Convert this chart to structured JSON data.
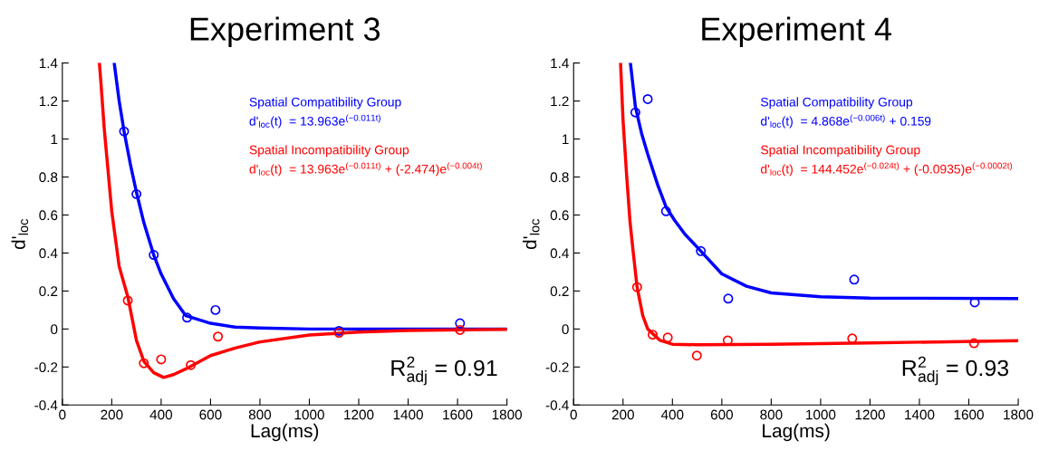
{
  "chart_data": [
    {
      "type": "scatter",
      "title": "Experiment 3",
      "xlabel": "Lag(ms)",
      "ylabel": "d'$_{loc}$",
      "xlim": [
        0,
        1800
      ],
      "ylim": [
        -0.4,
        1.4
      ],
      "xticks": [
        0,
        200,
        400,
        600,
        800,
        1000,
        1200,
        1400,
        1600,
        1800
      ],
      "yticks": [
        -0.4,
        -0.2,
        0,
        0.2,
        0.4,
        0.6,
        0.8,
        1,
        1.2,
        1.4
      ],
      "grid": false,
      "legend": "top right",
      "marker": "circle",
      "series": [
        {
          "color": "#0000ff",
          "x": [
            250,
            300,
            370,
            505,
            620,
            1120,
            1610
          ],
          "values": [
            1.04,
            0.71,
            0.39,
            0.06,
            0.1,
            -0.01,
            0.03
          ]
        },
        {
          "color": "#ff0000",
          "x": [
            265,
            330,
            400,
            520,
            630,
            1120,
            1610
          ],
          "values": [
            0.15,
            -0.18,
            -0.16,
            -0.19,
            -0.04,
            -0.02,
            -0.005
          ]
        },
        {
          "type": "line",
          "name": "Spatial Compatibility Group\nd'$_{loc}$(t)  = 13.963e$^{(−0.011t)}$",
          "color": "#0000ff",
          "marker": "none",
          "x": [
            210,
            230,
            250,
            275,
            300,
            330,
            370,
            400,
            450,
            500,
            600,
            700,
            800,
            1000,
            1800
          ],
          "values": [
            1.4,
            1.2,
            1.04,
            0.87,
            0.72,
            0.56,
            0.39,
            0.29,
            0.16,
            0.07,
            0.03,
            0.01,
            0.005,
            0,
            0
          ]
        },
        {
          "type": "line",
          "name": "Spatial Incompatibility Group\nd'$_{loc}$(t)  = 13.963e$^{(−0.011t)}$ + (-2.474)e$^{(−0.004t)}$",
          "color": "#ff0000",
          "marker": "none",
          "x": [
            150,
            156,
            170,
            200,
            230,
            265,
            300,
            330,
            370,
            410,
            450,
            500,
            600,
            700,
            800,
            1000,
            1200,
            1400,
            1800
          ],
          "values": [
            1.4,
            1.3,
            1.05,
            0.62,
            0.33,
            0.17,
            -0.06,
            -0.17,
            -0.23,
            -0.255,
            -0.24,
            -0.21,
            -0.14,
            -0.1,
            -0.068,
            -0.032,
            -0.016,
            -0.008,
            -0.002
          ]
        }
      ],
      "annotations": [
        "R$^{2}$$_{adj}$ = 0.91"
      ]
    },
    {
      "type": "scatter",
      "title": "Experiment 4",
      "xlabel": "Lag(ms)",
      "ylabel": "d'$_{loc}$",
      "xlim": [
        0,
        1800
      ],
      "ylim": [
        -0.4,
        1.4
      ],
      "xticks": [
        0,
        200,
        400,
        600,
        800,
        1000,
        1200,
        1400,
        1600,
        1800
      ],
      "yticks": [
        -0.4,
        -0.2,
        0,
        0.2,
        0.4,
        0.6,
        0.8,
        1,
        1.2,
        1.4
      ],
      "grid": false,
      "legend": "top right",
      "marker": "circle",
      "series": [
        {
          "color": "#0000ff",
          "x": [
            250,
            300,
            374,
            515,
            626,
            1136,
            1624
          ],
          "values": [
            1.14,
            1.21,
            0.62,
            0.41,
            0.16,
            0.26,
            0.14
          ]
        },
        {
          "color": "#ff0000",
          "x": [
            257,
            320,
            381,
            499,
            624,
            1128,
            1621
          ],
          "values": [
            0.22,
            -0.03,
            -0.045,
            -0.14,
            -0.06,
            -0.05,
            -0.075
          ]
        },
        {
          "type": "line",
          "name": "Spatial Compatibility Group\nd'$_{loc}$(t)  = 4.868e$^{(−0.006t)}$ + 0.159",
          "color": "#0000ff",
          "marker": "none",
          "x": [
            230,
            250,
            275,
            300,
            340,
            375,
            410,
            450,
            515,
            600,
            700,
            800,
            1000,
            1200,
            1800
          ],
          "values": [
            1.4,
            1.17,
            1.03,
            0.92,
            0.76,
            0.64,
            0.57,
            0.5,
            0.41,
            0.29,
            0.225,
            0.19,
            0.17,
            0.163,
            0.16
          ]
        },
        {
          "type": "line",
          "name": "Spatial Incompatibility Group\nd'$_{loc}$(t)  = 144.452e$^{(−0.024t)}$ + (-0.0935)e$^{(−0.0002t)}$",
          "color": "#ff0000",
          "marker": "none",
          "x": [
            190,
            200,
            215,
            228,
            240,
            257,
            280,
            300,
            350,
            400,
            500,
            800,
            1200,
            1800
          ],
          "values": [
            1.4,
            1.1,
            0.8,
            0.57,
            0.42,
            0.22,
            0.07,
            0.0,
            -0.06,
            -0.08,
            -0.083,
            -0.08,
            -0.073,
            -0.062
          ]
        }
      ],
      "annotations": [
        "R$^{2}$$_{adj}$ = 0.93"
      ]
    }
  ]
}
